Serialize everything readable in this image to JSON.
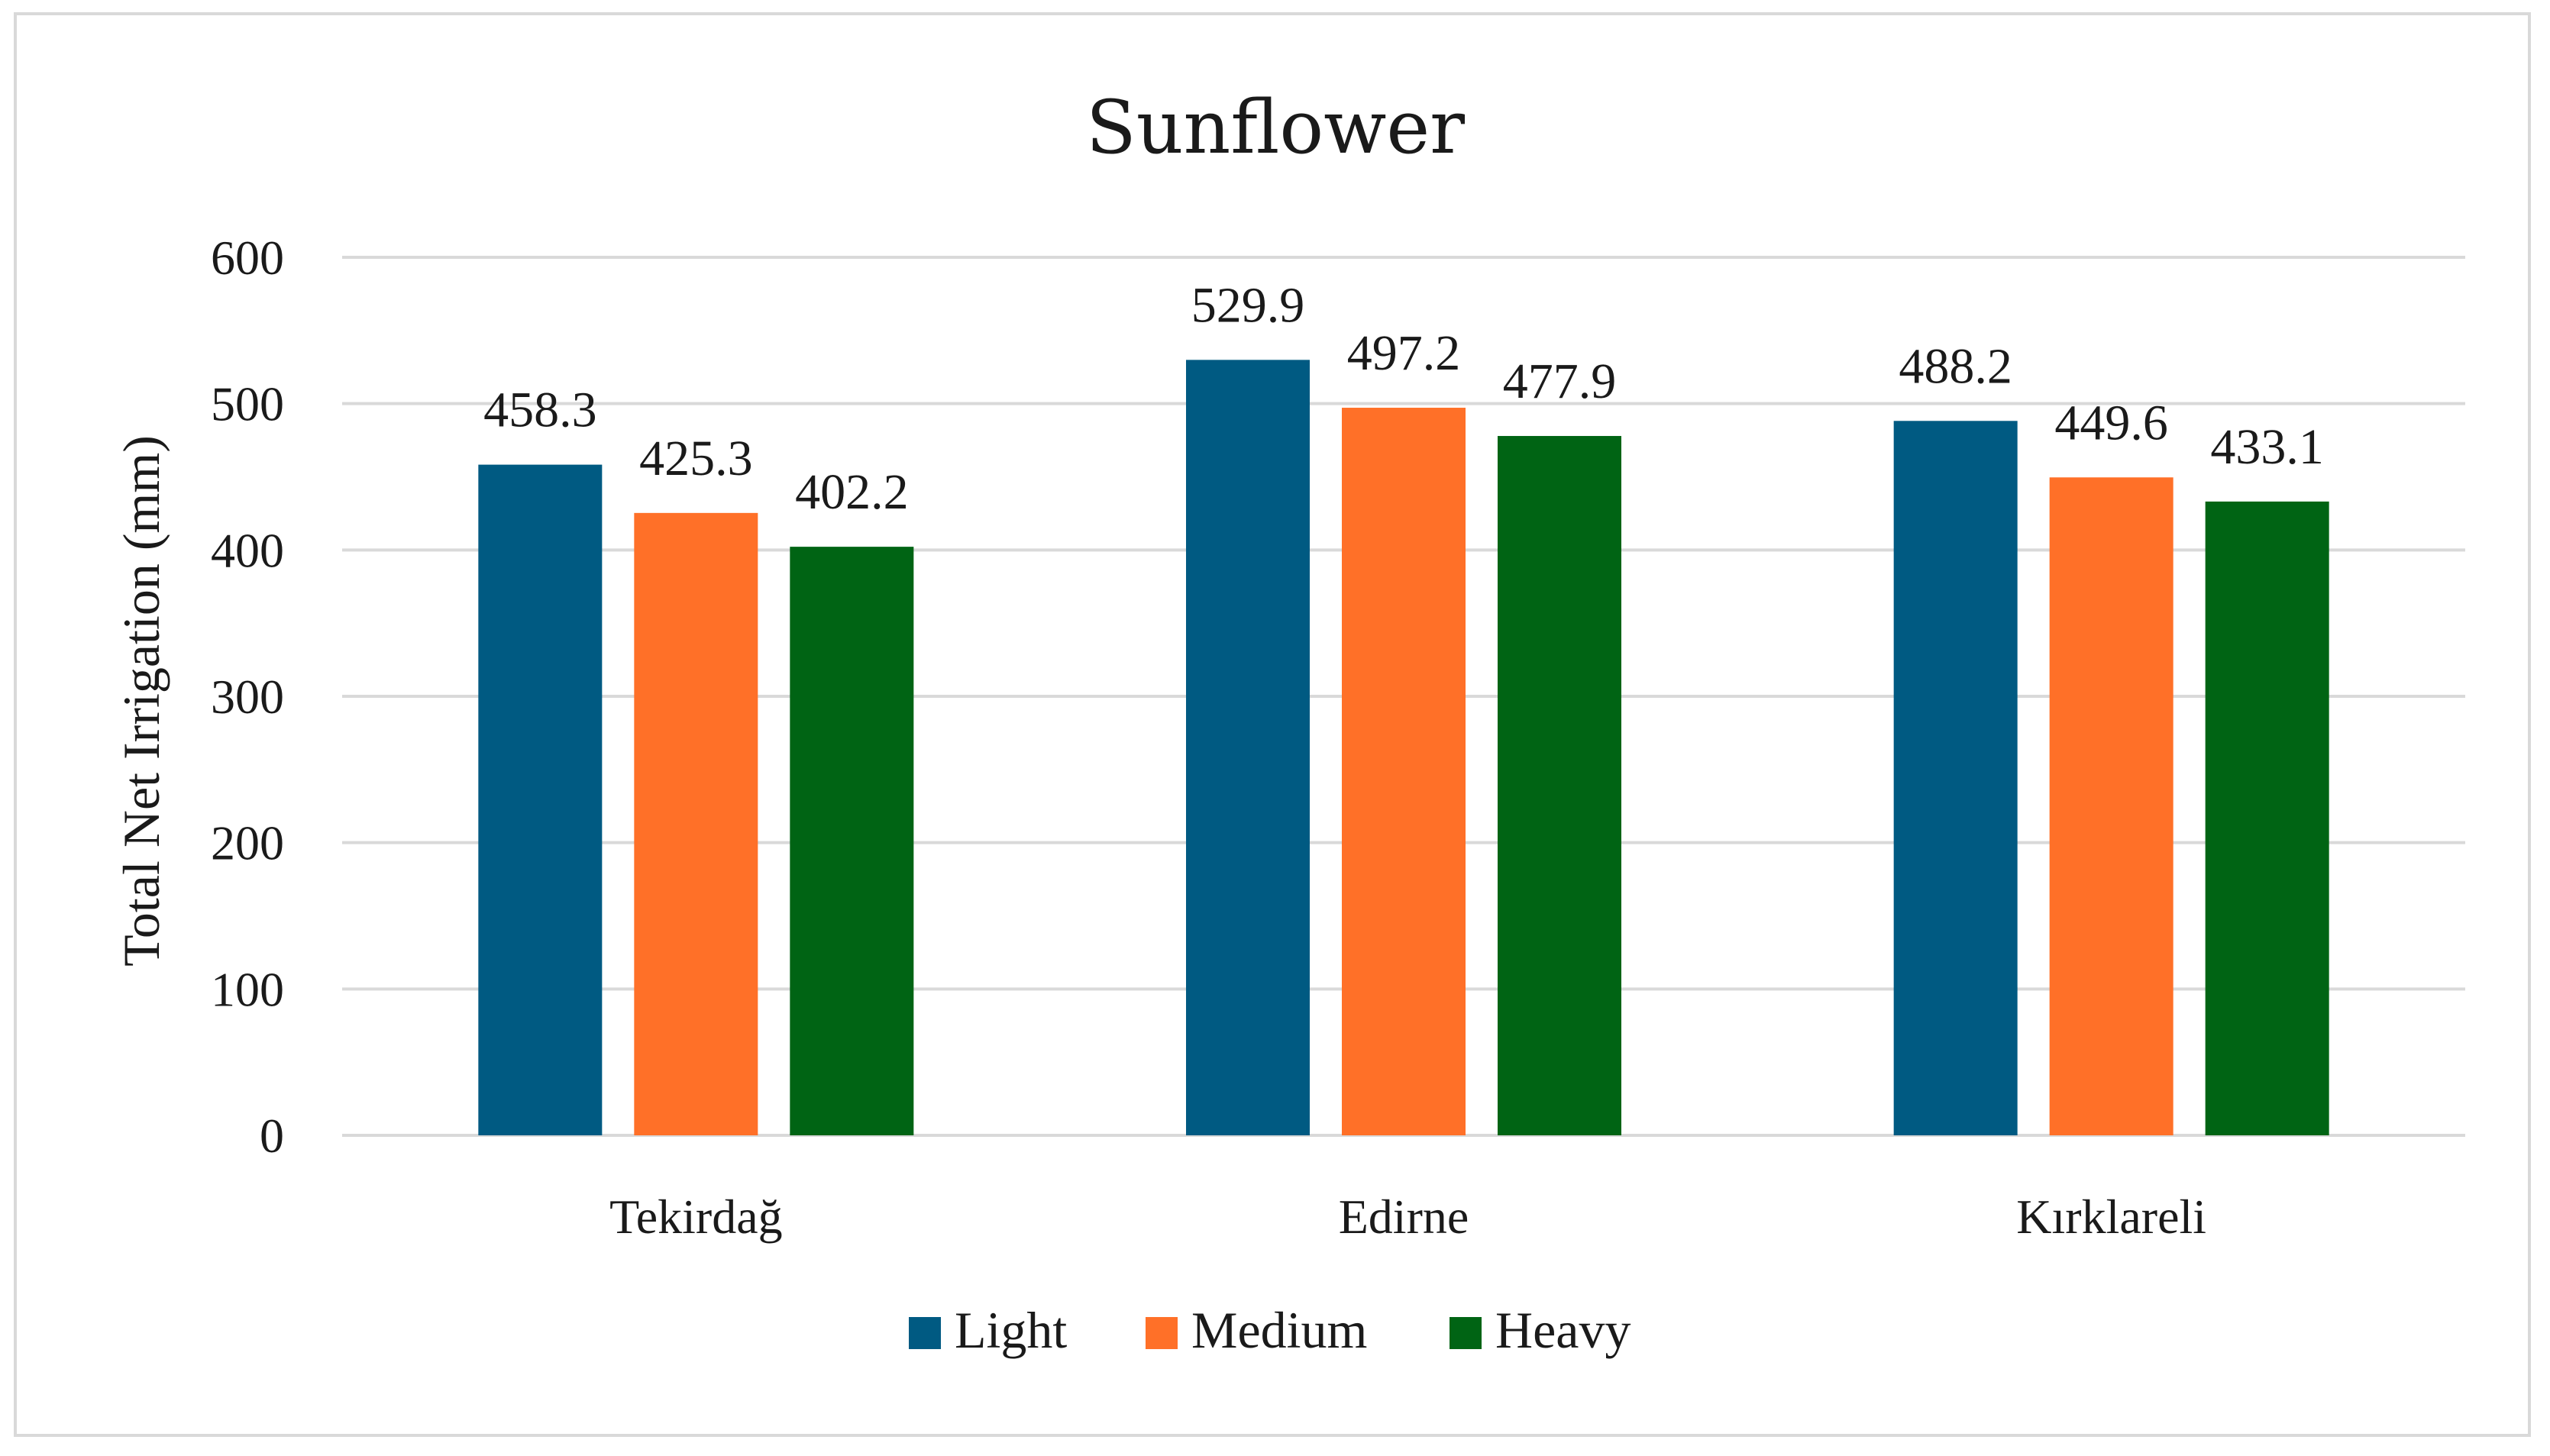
{
  "chart_data": {
    "type": "bar",
    "title": "Sunflower",
    "xlabel": "",
    "ylabel": "Total Net Irrigation (mm)",
    "categories": [
      "Tekirdağ",
      "Edirne",
      "Kırklareli"
    ],
    "series": [
      {
        "name": "Light",
        "color": "#005a82",
        "values": [
          458.3,
          529.9,
          488.2
        ],
        "labels": [
          "458.3",
          "529.9",
          "488.2"
        ]
      },
      {
        "name": "Medium",
        "color": "#ff7028",
        "values": [
          425.3,
          497.2,
          449.6
        ],
        "labels": [
          "425.3",
          "497.2",
          "449.6"
        ]
      },
      {
        "name": "Heavy",
        "color": "#006414",
        "values": [
          402.2,
          477.9,
          433.1
        ],
        "labels": [
          "402.2",
          "477.9",
          "433.1"
        ]
      }
    ],
    "ylim": [
      0,
      600
    ],
    "yticks": [
      "0",
      "100",
      "200",
      "300",
      "400",
      "500",
      "600"
    ],
    "grid": true,
    "legend_position": "bottom"
  }
}
